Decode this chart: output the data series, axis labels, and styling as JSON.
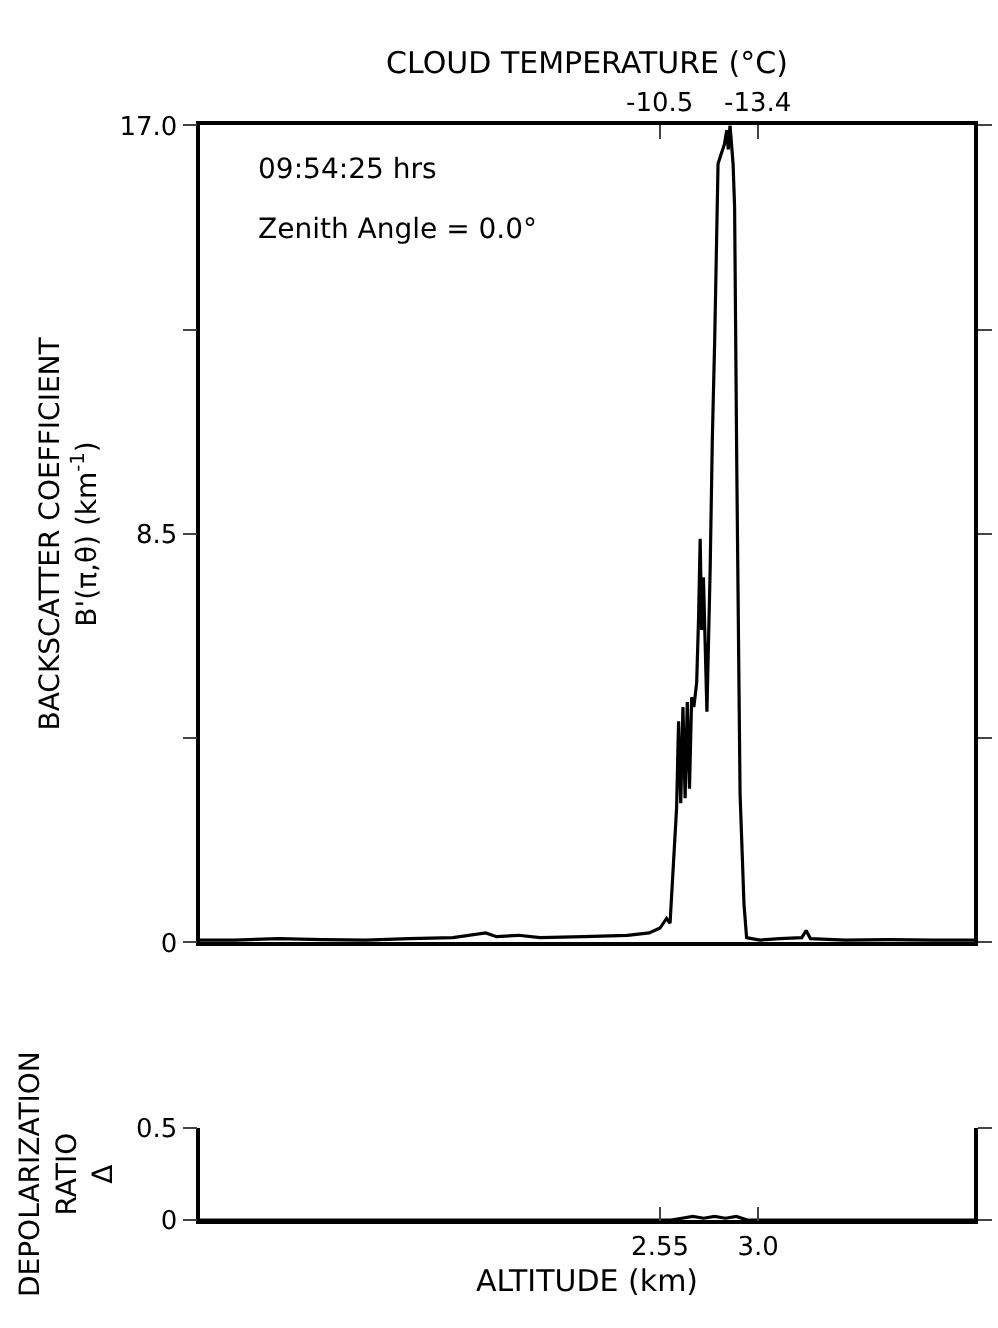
{
  "chart_data": [
    {
      "type": "line",
      "ylabel": "BACKSCATTER COEFFICIENT\nB'(π,θ) (km$^{-1}$)",
      "x2label": "CLOUD TEMPERATURE (°C)",
      "annotations": [
        "09:54:25 hrs",
        "Zenith Angle = 0.0°"
      ],
      "xlim": [
        0.44,
        3.99
      ],
      "ylim": [
        0,
        17
      ],
      "yticks": [
        0,
        {
          "value": 4.25,
          "label": null
        },
        8.5,
        {
          "value": 12.75,
          "label": null
        },
        {
          "value": 17,
          "label": "17.0"
        }
      ],
      "x2lim": [
        3.1,
        -19.8
      ],
      "x2ticks": [
        -10.5,
        -13.4
      ],
      "tick_labels": "y",
      "marker": "none",
      "line_style": "solid",
      "series": [
        {
          "color": "#000000",
          "x": [
            0.44,
            0.6,
            0.8,
            1.0,
            1.2,
            1.4,
            1.6,
            1.75,
            1.8,
            1.9,
            2.0,
            2.2,
            2.4,
            2.5,
            2.55,
            2.58,
            2.596,
            2.626,
            2.635,
            2.645,
            2.655,
            2.665,
            2.675,
            2.685,
            2.695,
            2.705,
            2.718,
            2.727,
            2.734,
            2.741,
            2.749,
            2.757,
            2.765,
            2.78,
            2.79,
            2.801,
            2.816,
            2.83,
            2.845,
            2.856,
            2.863,
            2.871,
            2.878,
            2.885,
            2.892,
            2.902,
            2.917,
            2.935,
            2.947,
            2.97,
            3.009,
            3.1,
            3.2,
            3.22,
            3.24,
            3.4,
            3.6,
            3.8,
            3.99
          ],
          "values": [
            0.05,
            0.05,
            0.08,
            0.06,
            0.05,
            0.08,
            0.1,
            0.2,
            0.12,
            0.15,
            0.1,
            0.12,
            0.15,
            0.2,
            0.3,
            0.5,
            0.4,
            2.8,
            4.6,
            2.9,
            4.9,
            3.0,
            5.0,
            3.2,
            5.1,
            4.9,
            5.4,
            6.8,
            8.4,
            6.5,
            7.6,
            6.2,
            4.8,
            7.8,
            10.5,
            12.6,
            16.2,
            16.4,
            16.6,
            16.9,
            16.5,
            17.0,
            16.6,
            16.2,
            15.3,
            9.9,
            3.1,
            0.8,
            0.1,
            0.08,
            0.05,
            0.08,
            0.1,
            0.25,
            0.08,
            0.05,
            0.06,
            0.05,
            0.05
          ]
        }
      ]
    },
    {
      "type": "line",
      "ylabel": "DEPOLARIZATION\nRATIO\nΔ",
      "xlabel": "ALTITUDE (km)",
      "xlim": [
        0.44,
        3.99
      ],
      "xticks": [
        2.55,
        {
          "value": 3.0,
          "label": "3.0"
        }
      ],
      "ylim": [
        0,
        0.5
      ],
      "yticks": [
        0,
        0.5
      ],
      "marker": "none",
      "line_style": "solid",
      "series": [
        {
          "color": "#000000",
          "x": [
            0.44,
            2.6,
            2.65,
            2.7,
            2.75,
            2.8,
            2.85,
            2.9,
            2.95,
            3.99
          ],
          "values": [
            0,
            0,
            0.01,
            0.02,
            0.01,
            0.02,
            0.01,
            0.02,
            0,
            0
          ]
        }
      ]
    }
  ]
}
